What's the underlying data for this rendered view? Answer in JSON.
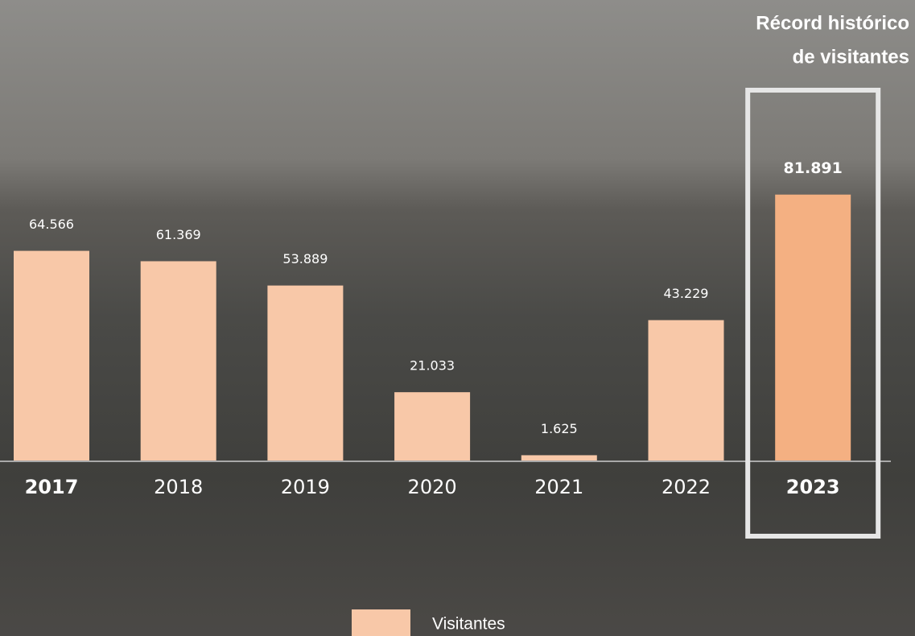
{
  "chart_data": {
    "type": "bar",
    "annotation": [
      "Récord histórico",
      "de visitantes"
    ],
    "categories": [
      "2017",
      "2018",
      "2019",
      "2020",
      "2021",
      "2022",
      "2023"
    ],
    "series": [
      {
        "name": "Visitantes",
        "color": "#f8c8a8",
        "values": [
          64566,
          61369,
          53889,
          21033,
          1625,
          43229,
          81891
        ],
        "value_labels": [
          "64.566",
          "61.369",
          "53.889",
          "21.033",
          "1.625",
          "43.229",
          "81.891"
        ]
      }
    ],
    "highlight": "2023",
    "highlight_color": "#f4b082",
    "ylim": [
      0,
      90000
    ],
    "grid": false
  }
}
